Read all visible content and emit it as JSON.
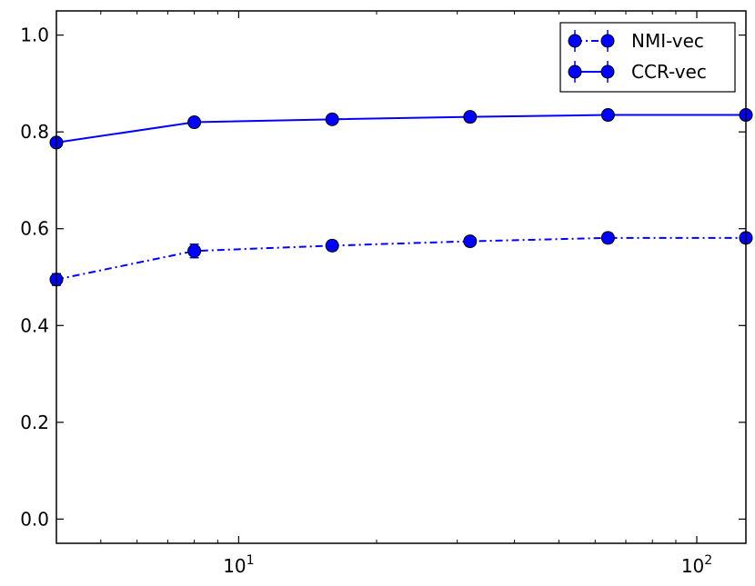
{
  "chart_data": {
    "type": "line",
    "x_scale": "log",
    "xlim": [
      4,
      128
    ],
    "ylim": [
      -0.05,
      1.05
    ],
    "x_ticks": [
      {
        "value": 10,
        "base": "10",
        "exp": "1"
      },
      {
        "value": 100,
        "base": "10",
        "exp": "2"
      }
    ],
    "y_ticks": [
      {
        "value": 0.0,
        "label": "0.0"
      },
      {
        "value": 0.2,
        "label": "0.2"
      },
      {
        "value": 0.4,
        "label": "0.4"
      },
      {
        "value": 0.6,
        "label": "0.6"
      },
      {
        "value": 0.8,
        "label": "0.8"
      },
      {
        "value": 1.0,
        "label": "1.0"
      }
    ],
    "x": [
      4,
      8,
      16,
      32,
      64,
      128
    ],
    "series": [
      {
        "name": "NMI-vec",
        "line_style": "dash-dot",
        "color": "#0000ff",
        "values": [
          0.495,
          0.554,
          0.565,
          0.574,
          0.581,
          0.581
        ],
        "errors": [
          0.012,
          0.014,
          0.01,
          0.008,
          0.01,
          0.01
        ]
      },
      {
        "name": "CCR-vec",
        "line_style": "solid",
        "color": "#0000ff",
        "values": [
          0.778,
          0.82,
          0.826,
          0.831,
          0.835,
          0.835
        ],
        "errors": [
          0.006,
          0.005,
          0.004,
          0.004,
          0.004,
          0.004
        ]
      }
    ],
    "legend_position": "top-right",
    "grid": false,
    "title": "",
    "xlabel": "",
    "ylabel": ""
  }
}
